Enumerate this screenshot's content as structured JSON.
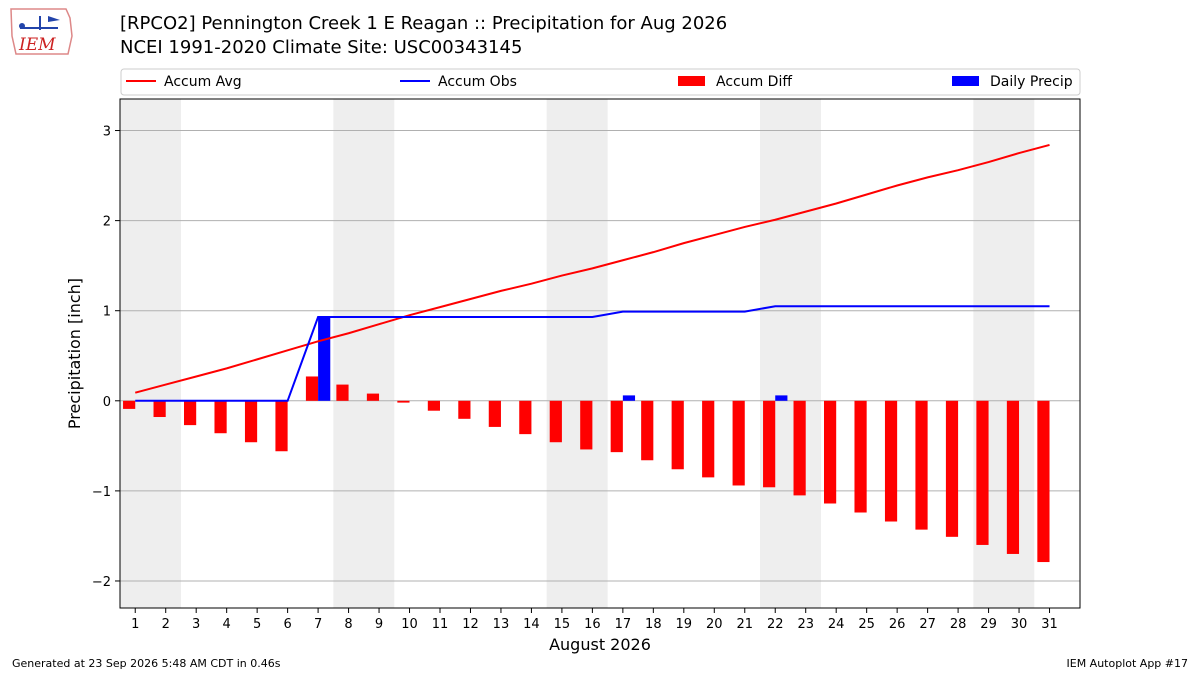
{
  "header": {
    "title_line1": "[RPCO2] Pennington Creek 1 E Reagan :: Precipitation for Aug 2026",
    "title_line2": "NCEI 1991-2020 Climate Site: USC00343145",
    "logo_text": "IEM"
  },
  "footer": {
    "left": "Generated at 23 Sep 2026 5:48 AM CDT in 0.46s",
    "right": "IEM Autoplot App #17"
  },
  "colors": {
    "accum_avg": "#ff0000",
    "accum_obs": "#0000ff",
    "accum_diff": "#ff0000",
    "daily_precip": "#0000ff",
    "weekend_band": "#eeeeee",
    "grid": "#b0b0b0"
  },
  "chart_data": {
    "type": "bar",
    "xlabel": "August 2026",
    "ylabel": "Precipitation [inch]",
    "ylim": [
      -2.3,
      3.35
    ],
    "yticks": [
      -2,
      -1,
      0,
      1,
      2,
      3
    ],
    "ytick_labels": [
      "−2",
      "−1",
      "0",
      "1",
      "2",
      "3"
    ],
    "grid": "horizontal",
    "legend_position": "top",
    "categories": [
      "1",
      "2",
      "3",
      "4",
      "5",
      "6",
      "7",
      "8",
      "9",
      "10",
      "11",
      "12",
      "13",
      "14",
      "15",
      "16",
      "17",
      "18",
      "19",
      "20",
      "21",
      "22",
      "23",
      "24",
      "25",
      "26",
      "27",
      "28",
      "29",
      "30",
      "31"
    ],
    "shaded_weekend_days": [
      [
        1,
        2
      ],
      [
        8,
        9
      ],
      [
        15,
        16
      ],
      [
        22,
        23
      ],
      [
        29,
        30
      ]
    ],
    "legend": [
      {
        "label": "Accum Avg",
        "kind": "line",
        "color": "#ff0000"
      },
      {
        "label": "Accum Obs",
        "kind": "line",
        "color": "#0000ff"
      },
      {
        "label": "Accum Diff",
        "kind": "bar",
        "color": "#ff0000"
      },
      {
        "label": "Daily Precip",
        "kind": "bar",
        "color": "#0000ff"
      }
    ],
    "series": [
      {
        "name": "Accum Avg",
        "type": "line",
        "values": [
          0.09,
          0.18,
          0.27,
          0.36,
          0.46,
          0.56,
          0.66,
          0.75,
          0.85,
          0.95,
          1.04,
          1.13,
          1.22,
          1.3,
          1.39,
          1.47,
          1.56,
          1.65,
          1.75,
          1.84,
          1.93,
          2.01,
          2.1,
          2.19,
          2.29,
          2.39,
          2.48,
          2.56,
          2.65,
          2.75,
          2.84
        ]
      },
      {
        "name": "Accum Obs",
        "type": "line",
        "values": [
          0,
          0,
          0,
          0,
          0,
          0,
          0.93,
          0.93,
          0.93,
          0.93,
          0.93,
          0.93,
          0.93,
          0.93,
          0.93,
          0.93,
          0.99,
          0.99,
          0.99,
          0.99,
          0.99,
          1.05,
          1.05,
          1.05,
          1.05,
          1.05,
          1.05,
          1.05,
          1.05,
          1.05,
          1.05
        ]
      },
      {
        "name": "Accum Diff",
        "type": "bar",
        "values": [
          -0.09,
          -0.18,
          -0.27,
          -0.36,
          -0.46,
          -0.56,
          0.27,
          0.18,
          0.08,
          -0.02,
          -0.11,
          -0.2,
          -0.29,
          -0.37,
          -0.46,
          -0.54,
          -0.57,
          -0.66,
          -0.76,
          -0.85,
          -0.94,
          -0.96,
          -1.05,
          -1.14,
          -1.24,
          -1.34,
          -1.43,
          -1.51,
          -1.6,
          -1.7,
          -1.79
        ]
      },
      {
        "name": "Daily Precip",
        "type": "bar",
        "values": [
          0,
          0,
          0,
          0,
          0,
          0,
          0.93,
          0,
          0,
          0,
          0,
          0,
          0,
          0,
          0,
          0,
          0.06,
          0,
          0,
          0,
          0,
          0.06,
          0,
          0,
          0,
          0,
          0,
          0,
          0,
          0,
          0
        ]
      }
    ]
  }
}
